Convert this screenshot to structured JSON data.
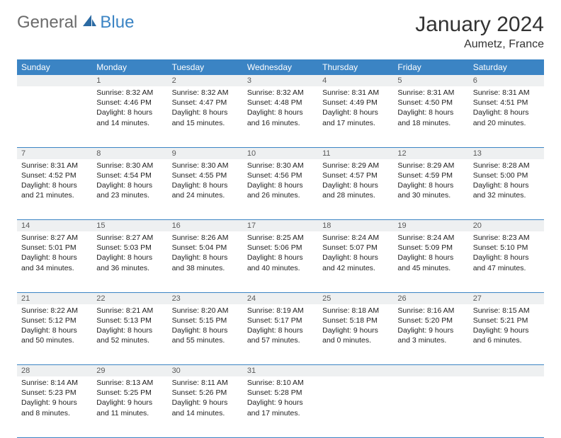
{
  "logo": {
    "general": "General",
    "blue": "Blue"
  },
  "title": "January 2024",
  "location": "Aumetz, France",
  "colors": {
    "header_bg": "#3b84c4",
    "header_text": "#ffffff",
    "daynum_bg": "#eef0f1",
    "row_divider": "#3b84c4",
    "logo_gray": "#6b6b6b",
    "logo_blue": "#3b84c4"
  },
  "weekdays": [
    "Sunday",
    "Monday",
    "Tuesday",
    "Wednesday",
    "Thursday",
    "Friday",
    "Saturday"
  ],
  "weeks": [
    {
      "nums": [
        "",
        "1",
        "2",
        "3",
        "4",
        "5",
        "6"
      ],
      "cells": [
        null,
        {
          "sunrise": "8:32 AM",
          "sunset": "4:46 PM",
          "daylight": "8 hours and 14 minutes."
        },
        {
          "sunrise": "8:32 AM",
          "sunset": "4:47 PM",
          "daylight": "8 hours and 15 minutes."
        },
        {
          "sunrise": "8:32 AM",
          "sunset": "4:48 PM",
          "daylight": "8 hours and 16 minutes."
        },
        {
          "sunrise": "8:31 AM",
          "sunset": "4:49 PM",
          "daylight": "8 hours and 17 minutes."
        },
        {
          "sunrise": "8:31 AM",
          "sunset": "4:50 PM",
          "daylight": "8 hours and 18 minutes."
        },
        {
          "sunrise": "8:31 AM",
          "sunset": "4:51 PM",
          "daylight": "8 hours and 20 minutes."
        }
      ]
    },
    {
      "nums": [
        "7",
        "8",
        "9",
        "10",
        "11",
        "12",
        "13"
      ],
      "cells": [
        {
          "sunrise": "8:31 AM",
          "sunset": "4:52 PM",
          "daylight": "8 hours and 21 minutes."
        },
        {
          "sunrise": "8:30 AM",
          "sunset": "4:54 PM",
          "daylight": "8 hours and 23 minutes."
        },
        {
          "sunrise": "8:30 AM",
          "sunset": "4:55 PM",
          "daylight": "8 hours and 24 minutes."
        },
        {
          "sunrise": "8:30 AM",
          "sunset": "4:56 PM",
          "daylight": "8 hours and 26 minutes."
        },
        {
          "sunrise": "8:29 AM",
          "sunset": "4:57 PM",
          "daylight": "8 hours and 28 minutes."
        },
        {
          "sunrise": "8:29 AM",
          "sunset": "4:59 PM",
          "daylight": "8 hours and 30 minutes."
        },
        {
          "sunrise": "8:28 AM",
          "sunset": "5:00 PM",
          "daylight": "8 hours and 32 minutes."
        }
      ]
    },
    {
      "nums": [
        "14",
        "15",
        "16",
        "17",
        "18",
        "19",
        "20"
      ],
      "cells": [
        {
          "sunrise": "8:27 AM",
          "sunset": "5:01 PM",
          "daylight": "8 hours and 34 minutes."
        },
        {
          "sunrise": "8:27 AM",
          "sunset": "5:03 PM",
          "daylight": "8 hours and 36 minutes."
        },
        {
          "sunrise": "8:26 AM",
          "sunset": "5:04 PM",
          "daylight": "8 hours and 38 minutes."
        },
        {
          "sunrise": "8:25 AM",
          "sunset": "5:06 PM",
          "daylight": "8 hours and 40 minutes."
        },
        {
          "sunrise": "8:24 AM",
          "sunset": "5:07 PM",
          "daylight": "8 hours and 42 minutes."
        },
        {
          "sunrise": "8:24 AM",
          "sunset": "5:09 PM",
          "daylight": "8 hours and 45 minutes."
        },
        {
          "sunrise": "8:23 AM",
          "sunset": "5:10 PM",
          "daylight": "8 hours and 47 minutes."
        }
      ]
    },
    {
      "nums": [
        "21",
        "22",
        "23",
        "24",
        "25",
        "26",
        "27"
      ],
      "cells": [
        {
          "sunrise": "8:22 AM",
          "sunset": "5:12 PM",
          "daylight": "8 hours and 50 minutes."
        },
        {
          "sunrise": "8:21 AM",
          "sunset": "5:13 PM",
          "daylight": "8 hours and 52 minutes."
        },
        {
          "sunrise": "8:20 AM",
          "sunset": "5:15 PM",
          "daylight": "8 hours and 55 minutes."
        },
        {
          "sunrise": "8:19 AM",
          "sunset": "5:17 PM",
          "daylight": "8 hours and 57 minutes."
        },
        {
          "sunrise": "8:18 AM",
          "sunset": "5:18 PM",
          "daylight": "9 hours and 0 minutes."
        },
        {
          "sunrise": "8:16 AM",
          "sunset": "5:20 PM",
          "daylight": "9 hours and 3 minutes."
        },
        {
          "sunrise": "8:15 AM",
          "sunset": "5:21 PM",
          "daylight": "9 hours and 6 minutes."
        }
      ]
    },
    {
      "nums": [
        "28",
        "29",
        "30",
        "31",
        "",
        "",
        ""
      ],
      "cells": [
        {
          "sunrise": "8:14 AM",
          "sunset": "5:23 PM",
          "daylight": "9 hours and 8 minutes."
        },
        {
          "sunrise": "8:13 AM",
          "sunset": "5:25 PM",
          "daylight": "9 hours and 11 minutes."
        },
        {
          "sunrise": "8:11 AM",
          "sunset": "5:26 PM",
          "daylight": "9 hours and 14 minutes."
        },
        {
          "sunrise": "8:10 AM",
          "sunset": "5:28 PM",
          "daylight": "9 hours and 17 minutes."
        },
        null,
        null,
        null
      ]
    }
  ]
}
